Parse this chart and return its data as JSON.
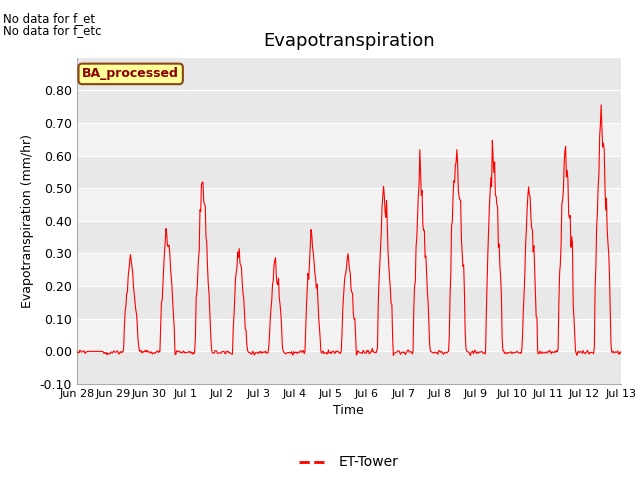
{
  "title": "Evapotranspiration",
  "ylabel": "Evapotranspiration (mm/hr)",
  "xlabel": "Time",
  "legend_label": "ET-Tower",
  "no_data_text1": "No data for f_et",
  "no_data_text2": "No data for f_etc",
  "ba_label": "BA_processed",
  "ylim": [
    -0.1,
    0.9
  ],
  "yticks": [
    -0.1,
    0.0,
    0.1,
    0.2,
    0.3,
    0.4,
    0.5,
    0.6,
    0.7,
    0.8
  ],
  "line_color": "red",
  "band_color_dark": "#e8e8e8",
  "band_color_light": "#f2f2f2",
  "title_fontsize": 13,
  "axis_fontsize": 9,
  "legend_fontsize": 10
}
